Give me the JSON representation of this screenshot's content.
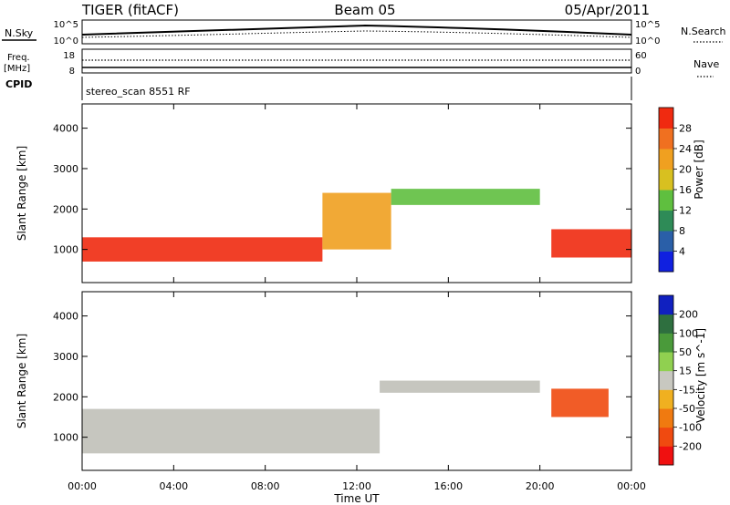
{
  "header": {
    "left_title": "TIGER (fitACF)",
    "center_title": "Beam 05",
    "right_title": "05/Apr/2011"
  },
  "status_panels": {
    "nsky": {
      "label": "N.Sky",
      "tick_top": "10^5",
      "tick_bottom": "10^0"
    },
    "nsearch": {
      "label": "N.Search",
      "tick_top": "10^5",
      "tick_bottom": "10^0"
    },
    "freq": {
      "label_line1": "Freq.",
      "label_line2": "[MHz]",
      "tick_top": "18",
      "tick_bottom": "8"
    },
    "nave": {
      "label": "Nave",
      "tick_top": "60",
      "tick_bottom": "0"
    },
    "cpid": {
      "label": "CPID",
      "value": "stereo_scan 8551 RF"
    }
  },
  "chart_data": [
    {
      "type": "heatmap",
      "title": "",
      "xlabel": "Time UT",
      "ylabel": "Slant Range [km]",
      "xlim": [
        0,
        24
      ],
      "ylim": [
        180,
        4600
      ],
      "xticks": [
        "00:00",
        "04:00",
        "08:00",
        "12:00",
        "16:00",
        "20:00",
        "00:00"
      ],
      "yticks": [
        "1000",
        "2000",
        "3000",
        "4000"
      ],
      "colorbar": {
        "label": "Power [dB]",
        "ticks": [
          "4",
          "8",
          "12",
          "16",
          "20",
          "24",
          "28"
        ],
        "colors": [
          "#1020e0",
          "#2a5fa8",
          "#2e8b57",
          "#5fbf3f",
          "#d8c020",
          "#f0a020",
          "#f07020",
          "#f02a10"
        ]
      },
      "features": [
        {
          "name": "near-range band",
          "t0": 0,
          "t1": 10.5,
          "r0": 700,
          "r1": 1300,
          "level": "high"
        },
        {
          "name": "rising arc",
          "t0": 10.5,
          "t1": 13.5,
          "r0": 1000,
          "r1": 2400,
          "level": "medium"
        },
        {
          "name": "plateau band",
          "t0": 13.5,
          "t1": 20,
          "r0": 2100,
          "r1": 2500,
          "level": "low"
        },
        {
          "name": "dusk band",
          "t0": 20.5,
          "t1": 24,
          "r0": 800,
          "r1": 1500,
          "level": "high"
        }
      ]
    },
    {
      "type": "heatmap",
      "title": "",
      "xlabel": "Time UT",
      "ylabel": "Slant Range [km]",
      "xlim": [
        0,
        24
      ],
      "ylim": [
        180,
        4600
      ],
      "xticks": [
        "00:00",
        "04:00",
        "08:00",
        "12:00",
        "16:00",
        "20:00",
        "00:00"
      ],
      "yticks": [
        "1000",
        "2000",
        "3000",
        "4000"
      ],
      "colorbar": {
        "label": "Velocity [m s^-1]",
        "ticks": [
          "200",
          "100",
          "50",
          "15",
          "-15",
          "-50",
          "-100",
          "-200"
        ],
        "colors": [
          "#1020c0",
          "#2e6f3f",
          "#4a9a3a",
          "#90d050",
          "#c8c8c0",
          "#f0b020",
          "#f07a10",
          "#f04a10",
          "#f01010"
        ]
      },
      "features": [
        {
          "name": "ground scatter band",
          "t0": 0,
          "t1": 13,
          "r0": 600,
          "r1": 1700,
          "level": "ground"
        },
        {
          "name": "plateau band",
          "t0": 13,
          "t1": 20,
          "r0": 2100,
          "r1": 2400,
          "level": "ground"
        },
        {
          "name": "dusk red band",
          "t0": 20.5,
          "t1": 23,
          "r0": 1500,
          "r1": 2200,
          "level": "negative"
        }
      ]
    }
  ]
}
